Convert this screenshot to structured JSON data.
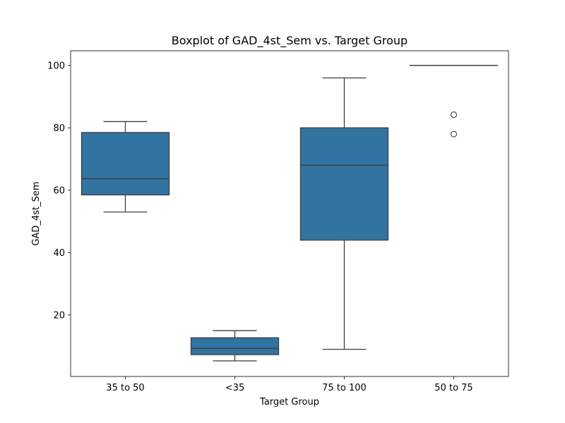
{
  "chart_data": {
    "type": "box",
    "title": "Boxplot of GAD_4st_Sem vs. Target Group",
    "xlabel": "Target Group",
    "ylabel": "GAD_4st_Sem",
    "categories": [
      "35 to 50",
      "<35",
      "75 to 100",
      "50 to 75"
    ],
    "yticks": [
      20,
      40,
      60,
      80,
      100
    ],
    "ylim": [
      0.3,
      104.7
    ],
    "grid": false,
    "box_color": "#3274a1",
    "boxes": [
      {
        "category": "35 to 50",
        "whisker_low": 53,
        "q1": 58.5,
        "median": 63.7,
        "q3": 78.5,
        "whisker_high": 82,
        "outliers": []
      },
      {
        "category": "<35",
        "whisker_low": 5.3,
        "q1": 7.3,
        "median": 9.3,
        "q3": 12.7,
        "whisker_high": 15,
        "outliers": []
      },
      {
        "category": "75 to 100",
        "whisker_low": 9,
        "q1": 44,
        "median": 68,
        "q3": 80,
        "whisker_high": 96,
        "outliers": []
      },
      {
        "category": "50 to 75",
        "whisker_low": 100,
        "q1": 100,
        "median": 100,
        "q3": 100,
        "whisker_high": 100,
        "outliers": [
          84.2,
          78
        ]
      }
    ]
  }
}
